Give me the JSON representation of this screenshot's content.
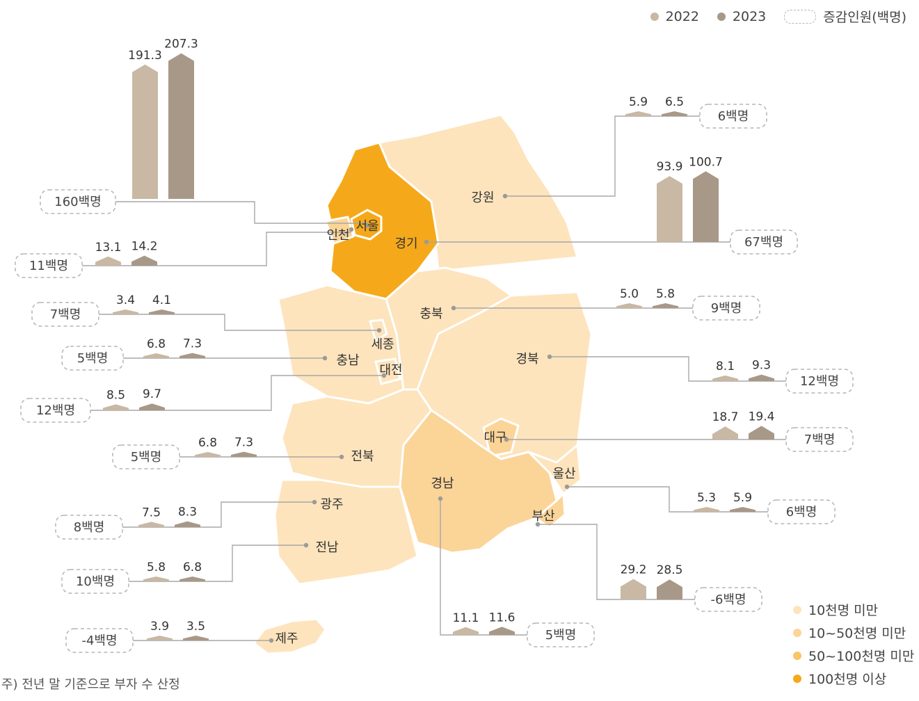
{
  "legend": {
    "year_2022": "2022",
    "year_2023": "2023",
    "change_label": "증감인원(백명)",
    "color_2022": "#c8b8a4",
    "color_2023": "#a89888"
  },
  "scale_legend": [
    {
      "label": "10천명 미만",
      "color": "#fde4bd"
    },
    {
      "label": "10~50천명 미만",
      "color": "#fbd498"
    },
    {
      "label": "50~100천명 미만",
      "color": "#f8c567"
    },
    {
      "label": "100천명 이상",
      "color": "#f5a91a"
    }
  ],
  "footnote": "주) 전년 말 기준으로 부자 수 산정",
  "regions": [
    {
      "id": "seoul",
      "name": "서울",
      "v2022": "191.3",
      "v2023": "207.3",
      "change": "160백명",
      "tier": 3
    },
    {
      "id": "incheon",
      "name": "인천",
      "v2022": "13.1",
      "v2023": "14.2",
      "change": "11백명",
      "tier": 1
    },
    {
      "id": "gyeonggi",
      "name": "경기",
      "v2022": "93.9",
      "v2023": "100.7",
      "change": "67백명",
      "tier": 3
    },
    {
      "id": "gangwon",
      "name": "강원",
      "v2022": "5.9",
      "v2023": "6.5",
      "change": "6백명",
      "tier": 0
    },
    {
      "id": "sejong",
      "name": "세종",
      "v2022": "3.4",
      "v2023": "4.1",
      "change": "7백명",
      "tier": 0
    },
    {
      "id": "chungbuk",
      "name": "충북",
      "v2022": "5.0",
      "v2023": "5.8",
      "change": "9백명",
      "tier": 0
    },
    {
      "id": "chungnam",
      "name": "충남",
      "v2022": "6.8",
      "v2023": "7.3",
      "change": "5백명",
      "tier": 0
    },
    {
      "id": "daejeon",
      "name": "대전",
      "v2022": "8.5",
      "v2023": "9.7",
      "change": "12백명",
      "tier": 0
    },
    {
      "id": "gyeongbuk",
      "name": "경북",
      "v2022": "8.1",
      "v2023": "9.3",
      "change": "12백명",
      "tier": 0
    },
    {
      "id": "jeonbuk",
      "name": "전북",
      "v2022": "6.8",
      "v2023": "7.3",
      "change": "5백명",
      "tier": 0
    },
    {
      "id": "daegu",
      "name": "대구",
      "v2022": "18.7",
      "v2023": "19.4",
      "change": "7백명",
      "tier": 1
    },
    {
      "id": "ulsan",
      "name": "울산",
      "v2022": "5.3",
      "v2023": "5.9",
      "change": "6백명",
      "tier": 0
    },
    {
      "id": "gwangju",
      "name": "광주",
      "v2022": "7.5",
      "v2023": "8.3",
      "change": "8백명",
      "tier": 0
    },
    {
      "id": "gyeongnam",
      "name": "경남",
      "v2022": "11.1",
      "v2023": "11.6",
      "change": "5백명",
      "tier": 1
    },
    {
      "id": "busan",
      "name": "부산",
      "v2022": "29.2",
      "v2023": "28.5",
      "change": "-6백명",
      "tier": 1
    },
    {
      "id": "jeonnam",
      "name": "전남",
      "v2022": "5.8",
      "v2023": "6.8",
      "change": "10백명",
      "tier": 0
    },
    {
      "id": "jeju",
      "name": "제주",
      "v2022": "3.9",
      "v2023": "3.5",
      "change": "-4백명",
      "tier": 0
    }
  ]
}
